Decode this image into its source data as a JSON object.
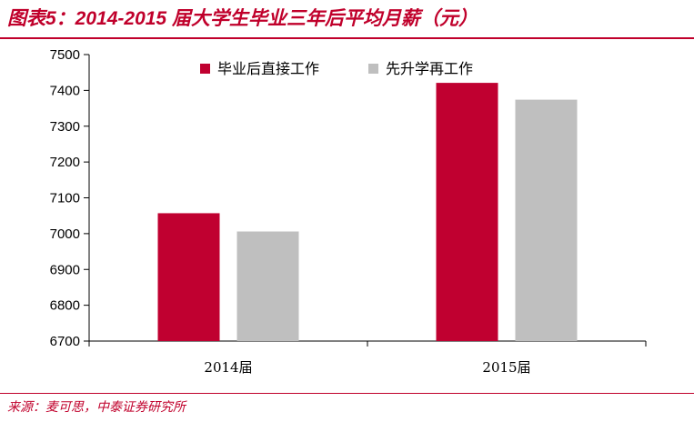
{
  "header": {
    "title": "图表5：2014-2015 届大学生毕业三年后平均月薪（元）"
  },
  "footer": {
    "source": "来源：麦可思，中泰证券研究所"
  },
  "colors": {
    "accent": "#c0002b",
    "series_1": "#c00030",
    "series_2": "#bfbfbf"
  },
  "chart_data": {
    "type": "bar",
    "title": "图表5：2014-2015 届大学生毕业三年后平均月薪（元）",
    "categories": [
      "2014届",
      "2015届"
    ],
    "series": [
      {
        "name": "毕业后直接工作",
        "values": [
          7057,
          7421
        ]
      },
      {
        "name": "先升学再工作",
        "values": [
          7006,
          7374
        ]
      }
    ],
    "xlabel": "",
    "ylabel": "",
    "ylim": [
      6700,
      7500
    ],
    "yticks": [
      6700,
      6800,
      6900,
      7000,
      7100,
      7200,
      7300,
      7400,
      7500
    ],
    "grid": false,
    "legend": "top"
  }
}
